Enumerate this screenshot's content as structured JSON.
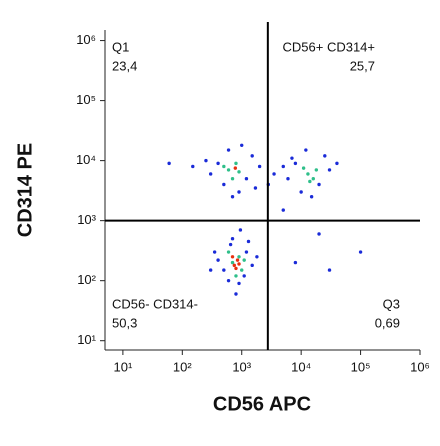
{
  "chart_data": {
    "type": "scatter",
    "xlabel": "CD56 APC",
    "ylabel": "CD314 PE",
    "xscale": "log",
    "yscale": "log",
    "xlim": [
      5,
      1000000
    ],
    "ylim": [
      7,
      1500000
    ],
    "xticks": [
      {
        "value": 10,
        "label": "10¹"
      },
      {
        "value": 100,
        "label": "10²"
      },
      {
        "value": 1000,
        "label": "10³"
      },
      {
        "value": 10000,
        "label": "10⁴"
      },
      {
        "value": 100000,
        "label": "10⁵"
      },
      {
        "value": 1000000,
        "label": "10⁶"
      }
    ],
    "yticks": [
      {
        "value": 10,
        "label": "10¹"
      },
      {
        "value": 100,
        "label": "10²"
      },
      {
        "value": 1000,
        "label": "10³"
      },
      {
        "value": 10000,
        "label": "10⁴"
      },
      {
        "value": 100000,
        "label": "10⁵"
      },
      {
        "value": 1000000,
        "label": "10⁶"
      }
    ],
    "gates": {
      "x": 2750,
      "y": 1000
    },
    "quadrants": [
      {
        "name": "Q1",
        "label": "23,4"
      },
      {
        "name": "CD56+ CD314+",
        "label": "25,7"
      },
      {
        "name": "CD56- CD314-",
        "label": "50,3"
      },
      {
        "name": "Q3",
        "label": "0,69"
      }
    ],
    "series": [
      {
        "color": "#1a2bd8",
        "x": [
          500,
          900,
          1200,
          650,
          400,
          1500,
          800,
          700,
          1100,
          350,
          1800,
          950,
          600,
          1300,
          300,
          400,
          1200,
          600,
          900,
          300,
          1500,
          700,
          2000,
          250,
          1000,
          500,
          1700,
          8000,
          20000,
          12000,
          30000,
          6000,
          15000,
          25000,
          10000,
          40000,
          7000,
          3500,
          5000,
          2800,
          60,
          100000,
          8000,
          20000,
          150,
          30000,
          5000
        ],
        "y": [
          150,
          90,
          300,
          400,
          220,
          180,
          60,
          500,
          120,
          300,
          250,
          700,
          100,
          450,
          150,
          9000,
          5000,
          15000,
          3000,
          6000,
          12000,
          2500,
          8000,
          10000,
          18000,
          4000,
          3500,
          9000,
          4000,
          15000,
          7000,
          5000,
          2500,
          12000,
          3000,
          9000,
          11000,
          6000,
          8000,
          4000,
          9000,
          300,
          200,
          600,
          8000,
          150,
          1500
        ]
      },
      {
        "color": "#2fbf8a",
        "x": [
          700,
          900,
          1000,
          600,
          800,
          1100,
          600,
          800,
          700,
          900,
          500,
          13000,
          16000,
          11000,
          18000,
          14000
        ],
        "y": [
          200,
          250,
          150,
          300,
          120,
          220,
          7000,
          9000,
          5000,
          6500,
          8000,
          6000,
          5000,
          7500,
          7000,
          4500
        ]
      },
      {
        "color": "#e83010",
        "x": [
          750,
          850,
          800,
          700,
          900,
          780
        ],
        "y": [
          180,
          220,
          160,
          250,
          190,
          7500
        ]
      }
    ]
  }
}
